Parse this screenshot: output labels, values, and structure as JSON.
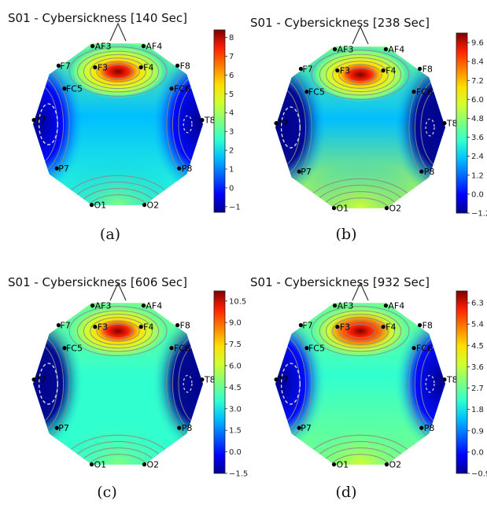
{
  "chart_data": [
    {
      "type": "heatmap",
      "title": "S01 - Cybersickness [140 Sec]",
      "panel_label": "(a)",
      "electrodes": [
        "AF3",
        "AF4",
        "F7",
        "F3",
        "F4",
        "F8",
        "FC5",
        "FC6",
        "T7",
        "T8",
        "P7",
        "P8",
        "O1",
        "O2"
      ],
      "colorbar_ticks": [
        "8",
        "7",
        "6",
        "5",
        "4",
        "3",
        "2",
        "1",
        "0",
        "−1"
      ],
      "colorbar_values": [
        8,
        7,
        6,
        5,
        4,
        3,
        2,
        1,
        0,
        -1
      ],
      "colorbar_range": [
        -1.3,
        8.4
      ],
      "scalp_values": {
        "frontal_peak": 8.3,
        "temporal_minimum": -1.3,
        "occipital": 2.5,
        "center": 2.0
      }
    },
    {
      "type": "heatmap",
      "title": "S01 - Cybersickness [238 Sec]",
      "panel_label": "(b)",
      "electrodes": [
        "AF3",
        "AF4",
        "F7",
        "F3",
        "F4",
        "F8",
        "FC5",
        "FC6",
        "T7",
        "T8",
        "P7",
        "P8",
        "O1",
        "O2"
      ],
      "colorbar_ticks": [
        "9.6",
        "8.4",
        "7.2",
        "6.0",
        "4.8",
        "3.6",
        "2.4",
        "1.2",
        "0.0",
        "−1.2"
      ],
      "colorbar_values": [
        9.6,
        8.4,
        7.2,
        6.0,
        4.8,
        3.6,
        2.4,
        1.2,
        0.0,
        -1.2
      ],
      "colorbar_range": [
        -1.2,
        10.2
      ],
      "scalp_values": {
        "frontal_peak": 10.0,
        "temporal_minimum": -1.2,
        "occipital": 5.5,
        "center": 2.6
      }
    },
    {
      "type": "heatmap",
      "title": "S01 - Cybersickness [606 Sec]",
      "panel_label": "(c)",
      "electrodes": [
        "AF3",
        "AF4",
        "F7",
        "F3",
        "F4",
        "F8",
        "FC5",
        "FC6",
        "T7",
        "T8",
        "P7",
        "P8",
        "O1",
        "O2"
      ],
      "colorbar_ticks": [
        "10.5",
        "9.0",
        "7.5",
        "6.0",
        "4.5",
        "3.0",
        "1.5",
        "0.0",
        "−1.5"
      ],
      "colorbar_values": [
        10.5,
        9.0,
        7.5,
        6.0,
        4.5,
        3.0,
        1.5,
        0.0,
        -1.5
      ],
      "colorbar_range": [
        -1.5,
        11.2
      ],
      "scalp_values": {
        "frontal_peak": 11.0,
        "temporal_minimum": -1.5,
        "occipital": 4.2,
        "center": 3.0
      }
    },
    {
      "type": "heatmap",
      "title": "S01 - Cybersickness [932 Sec]",
      "panel_label": "(d)",
      "electrodes": [
        "AF3",
        "AF4",
        "F7",
        "F3",
        "F4",
        "F8",
        "FC5",
        "FC6",
        "T7",
        "T8",
        "P7",
        "P8",
        "O1",
        "O2"
      ],
      "colorbar_ticks": [
        "6.3",
        "5.4",
        "4.5",
        "3.6",
        "2.7",
        "1.8",
        "0.9",
        "0.0",
        "−0.9"
      ],
      "colorbar_values": [
        6.3,
        5.4,
        4.5,
        3.6,
        2.7,
        1.8,
        0.9,
        0.0,
        -0.9
      ],
      "colorbar_range": [
        -0.9,
        6.8
      ],
      "scalp_values": {
        "frontal_peak": 6.7,
        "temporal_minimum": -0.9,
        "occipital": 3.2,
        "center": 2.2
      }
    }
  ]
}
